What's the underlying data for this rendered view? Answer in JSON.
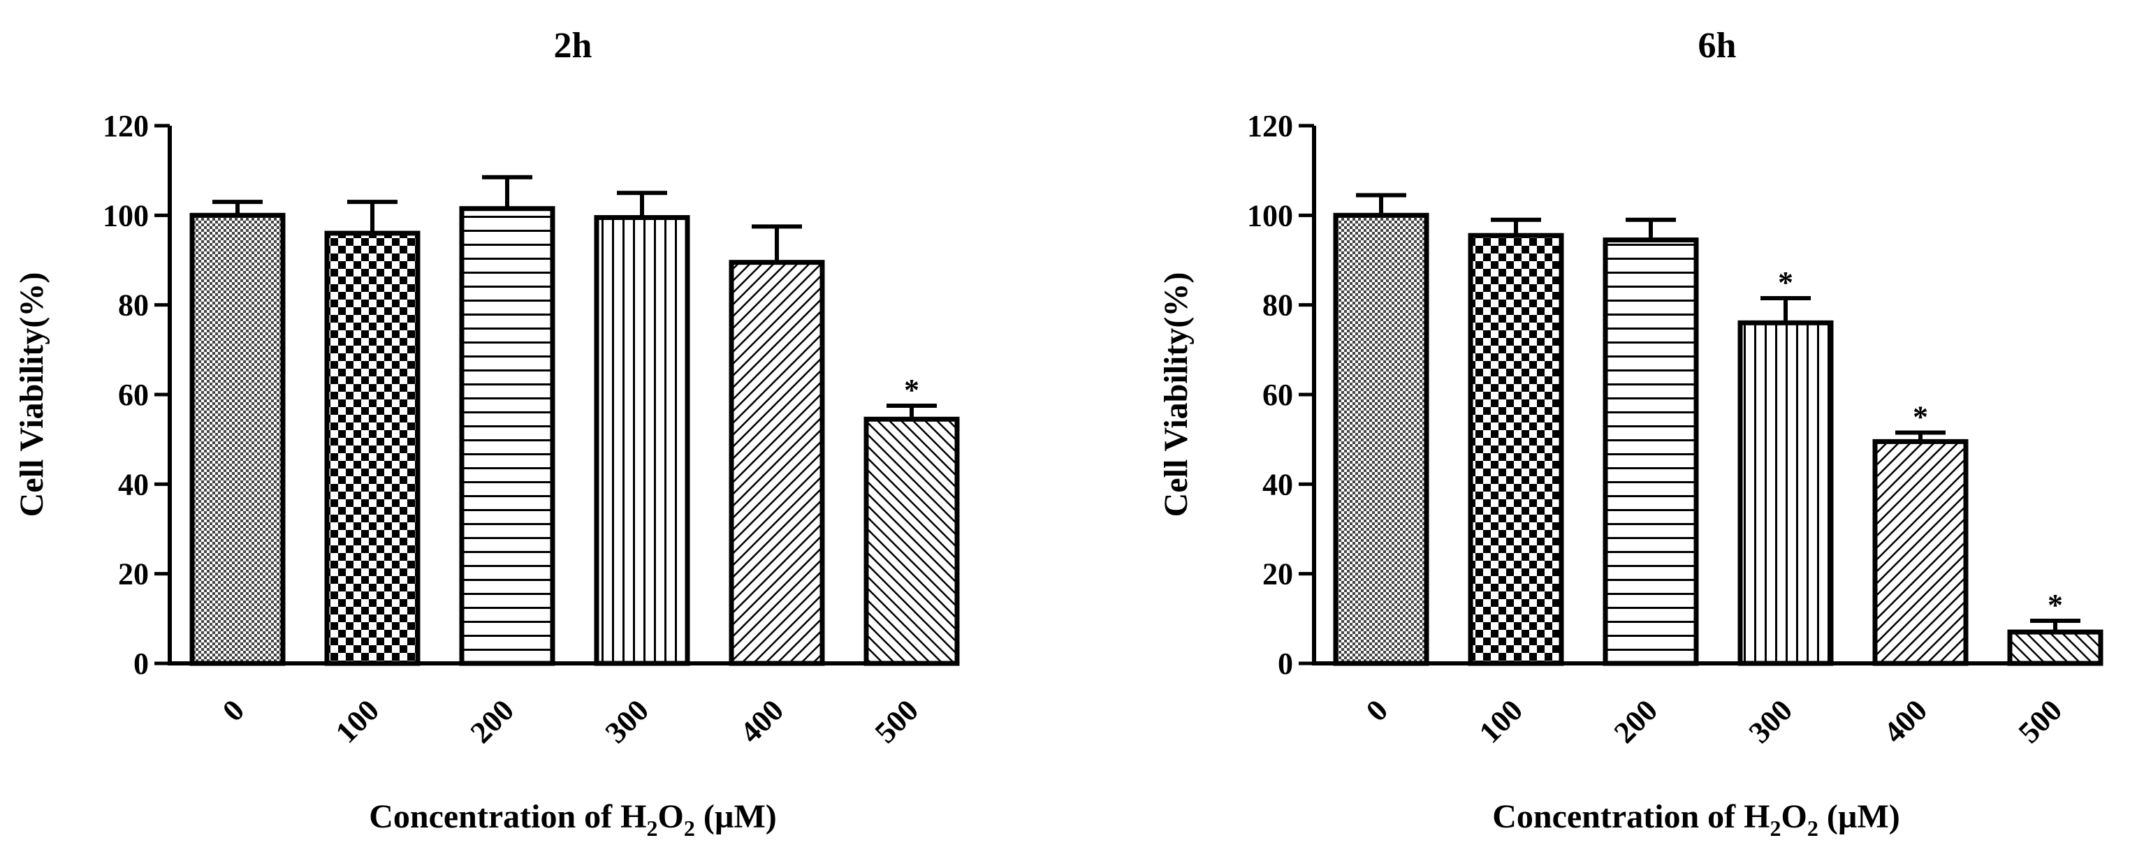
{
  "chart_data": [
    {
      "type": "bar",
      "title": "2h",
      "xlabel_prefix": "Concentration of H",
      "xlabel_sub1": "2",
      "xlabel_mid": "O",
      "xlabel_sub2": "2",
      "xlabel_suffix": " (µM)",
      "ylabel": "Cell Viability(%)",
      "ylim": [
        0,
        120
      ],
      "yticks": [
        "0",
        "20",
        "40",
        "60",
        "80",
        "100",
        "120"
      ],
      "categories": [
        "0",
        "100",
        "200",
        "300",
        "400",
        "500"
      ],
      "values": [
        100,
        96,
        101.5,
        99.5,
        89.5,
        54.5
      ],
      "errors": [
        3,
        7,
        7,
        5.5,
        8,
        3
      ],
      "significance": [
        "",
        "",
        "",
        "",
        "",
        "*"
      ],
      "patterns": [
        "fine-check",
        "check",
        "hlines",
        "vlines",
        "diag",
        "diag-back"
      ]
    },
    {
      "type": "bar",
      "title": "6h",
      "xlabel_prefix": "Concentration of H",
      "xlabel_sub1": "2",
      "xlabel_mid": "O",
      "xlabel_sub2": "2",
      "xlabel_suffix": " (µM)",
      "ylabel": "Cell Viability(%)",
      "ylim": [
        0,
        120
      ],
      "yticks": [
        "0",
        "20",
        "40",
        "60",
        "80",
        "100",
        "120"
      ],
      "categories": [
        "0",
        "100",
        "200",
        "300",
        "400",
        "500"
      ],
      "values": [
        100,
        95.5,
        94.5,
        76,
        49.5,
        7
      ],
      "errors": [
        4.5,
        3.5,
        4.5,
        5.5,
        2,
        2.5
      ],
      "significance": [
        "",
        "",
        "",
        "*",
        "*",
        "*"
      ],
      "patterns": [
        "fine-check",
        "check",
        "hlines",
        "vlines",
        "diag",
        "diag-back"
      ]
    }
  ]
}
